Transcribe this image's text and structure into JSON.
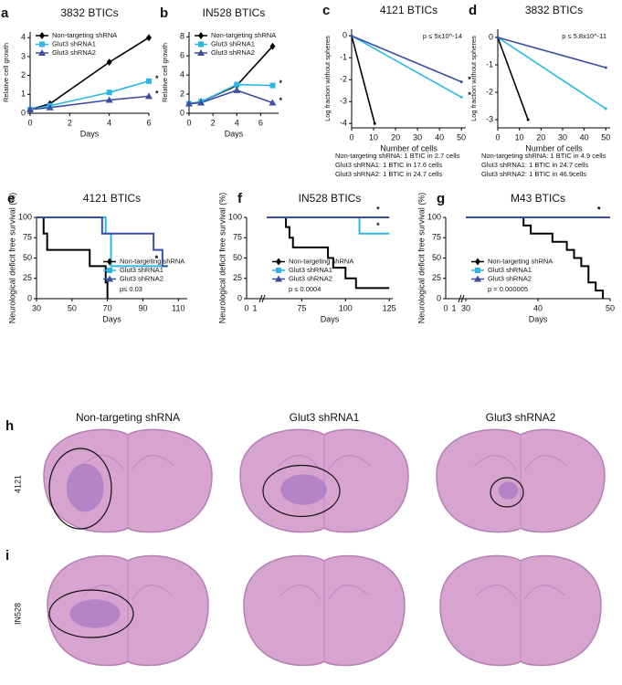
{
  "chart_data": [
    {
      "panel": "a",
      "type": "line",
      "title": "3832 BTICs",
      "xlabel": "Days",
      "ylabel": "Relative cell growth",
      "xlim": [
        0,
        6
      ],
      "ylim": [
        0,
        4.3
      ],
      "xticks": [
        0,
        2,
        4,
        6
      ],
      "yticks": [
        0,
        1,
        2,
        3,
        4
      ],
      "legend": "upper left",
      "series": [
        {
          "name": "Non-targeting shRNA",
          "color": "#000000",
          "marker": "diamond",
          "x": [
            0,
            1,
            4,
            6
          ],
          "values": [
            0.2,
            0.5,
            2.7,
            4.0
          ]
        },
        {
          "name": "Glut3 shRNA1",
          "color": "#2ab7e8",
          "marker": "square",
          "x": [
            0,
            1,
            4,
            6
          ],
          "values": [
            0.2,
            0.4,
            1.1,
            1.7
          ],
          "star": "*"
        },
        {
          "name": "Glut3 shRNA2",
          "color": "#3a4fa0",
          "marker": "triangle",
          "x": [
            0,
            1,
            4,
            6
          ],
          "values": [
            0.2,
            0.3,
            0.7,
            0.9
          ],
          "star": "*"
        }
      ]
    },
    {
      "panel": "b",
      "type": "line",
      "title": "IN528 BTICs",
      "xlabel": "Days",
      "ylabel": "Relative cell growth",
      "xlim": [
        0,
        7.5
      ],
      "ylim": [
        0,
        8.5
      ],
      "xticks": [
        0,
        2,
        4,
        6
      ],
      "yticks": [
        0,
        2,
        4,
        6,
        8
      ],
      "legend": "upper left",
      "series": [
        {
          "name": "Non-targeting shRNA",
          "color": "#000000",
          "marker": "diamond",
          "x": [
            0,
            1,
            4,
            7
          ],
          "values": [
            1,
            1.2,
            2.9,
            7.0
          ]
        },
        {
          "name": "Glut3 shRNA1",
          "color": "#2ab7e8",
          "marker": "square",
          "x": [
            0,
            1,
            4,
            7
          ],
          "values": [
            1,
            1.2,
            3.0,
            2.9
          ],
          "star": "*"
        },
        {
          "name": "Glut3 shRNA2",
          "color": "#3a4fa0",
          "marker": "triangle",
          "x": [
            0,
            1,
            4,
            7
          ],
          "values": [
            1,
            1.1,
            2.4,
            1.1
          ],
          "star": "*"
        }
      ]
    },
    {
      "panel": "c",
      "type": "line",
      "title": "4121 BTICs",
      "xlabel": "Number of cells",
      "ylabel": "Log fraction without spheres",
      "xlim": [
        0,
        52
      ],
      "ylim": [
        -4.2,
        0.3
      ],
      "xticks": [
        0,
        10,
        20,
        30,
        40,
        50
      ],
      "yticks": [
        0,
        -1,
        -2,
        -3,
        -4
      ],
      "annotation": "p ≤ 5x10^-14",
      "series": [
        {
          "name": "Non-targeting shRNA",
          "color": "#000000",
          "x": [
            0,
            10.5
          ],
          "values": [
            0,
            -4
          ]
        },
        {
          "name": "Glut3 shRNA1",
          "color": "#2ab7e8",
          "x": [
            0,
            50
          ],
          "values": [
            0,
            -2.8
          ],
          "star": "*"
        },
        {
          "name": "Glut3 shRNA2",
          "color": "#3a4fa0",
          "x": [
            0,
            50
          ],
          "values": [
            0,
            -2.1
          ],
          "star": "*"
        }
      ],
      "footnotes": [
        {
          "text": "Non-targeting shRNA: 1 BTIC in 2.7 cells",
          "color": "#000000"
        },
        {
          "text": "Glut3 shRNA1:  1 BTIC in 17.6 cells",
          "color": "#2ab7e8"
        },
        {
          "text": "Glut3 shRNA2:  1 BTIC in 24.7 cells",
          "color": "#3a4fa0"
        }
      ]
    },
    {
      "panel": "d",
      "type": "line",
      "title": "3832 BTICs",
      "xlabel": "Number of cells",
      "ylabel": "Log fraction without spheres",
      "xlim": [
        0,
        52
      ],
      "ylim": [
        -3.3,
        0.3
      ],
      "xticks": [
        0,
        10,
        20,
        30,
        40,
        50
      ],
      "yticks": [
        0,
        -1,
        -2,
        -3
      ],
      "annotation": "p ≤ 5.8x10^-11",
      "series": [
        {
          "name": "Non-targeting shRNA",
          "color": "#000000",
          "x": [
            0,
            14
          ],
          "values": [
            0,
            -3
          ]
        },
        {
          "name": "Glut3 shRNA1",
          "color": "#2ab7e8",
          "x": [
            0,
            50
          ],
          "values": [
            0,
            -2.6
          ]
        },
        {
          "name": "Glut3 shRNA2",
          "color": "#3a4fa0",
          "x": [
            0,
            50
          ],
          "values": [
            0,
            -1.1
          ]
        }
      ],
      "footnotes": [
        {
          "text": "Non-targeting shRNA: 1 BTIC in 4.9 cells",
          "color": "#000000"
        },
        {
          "text": "Glut3 shRNA1:  1 BTIC in 24.7 cells",
          "color": "#2ab7e8"
        },
        {
          "text": "Glut3 shRNA2:  1 BTIC in 46.9cells",
          "color": "#3a4fa0"
        }
      ]
    },
    {
      "panel": "e",
      "type": "survival",
      "title": "4121 BTICs",
      "xlabel": "Days",
      "ylabel": "Neurological deficit free survival (%)",
      "xlim": [
        30,
        115
      ],
      "ylim": [
        0,
        100
      ],
      "xticks": [
        30,
        50,
        70,
        90,
        110
      ],
      "yticks": [
        0,
        25,
        50,
        75,
        100
      ],
      "legend": "lower right",
      "annotation": "p≤ 0.03",
      "series": [
        {
          "name": "Non-targeting shRNA",
          "color": "#000000",
          "marker": "diamond",
          "x": [
            30,
            34,
            36,
            60,
            69,
            70
          ],
          "values": [
            100,
            80,
            60,
            40,
            20,
            0
          ]
        },
        {
          "name": "Glut3 shRNA1",
          "color": "#2ab7e8",
          "marker": "square",
          "x": [
            30,
            69,
            72,
            104
          ],
          "values": [
            100,
            80,
            40,
            40
          ],
          "star": "*"
        },
        {
          "name": "Glut3 shRNA2",
          "color": "#3a4fa0",
          "marker": "triangle",
          "x": [
            30,
            67,
            96,
            101,
            104
          ],
          "values": [
            100,
            80,
            60,
            40,
            40
          ],
          "star": "*"
        }
      ]
    },
    {
      "panel": "f",
      "type": "survival",
      "title": "IN528 BTICs",
      "xlabel": "Days",
      "ylabel": "Neurological deficit free survival (%)",
      "xlim": [
        55,
        127
      ],
      "ylim": [
        0,
        100
      ],
      "xticks": [
        75,
        100,
        125
      ],
      "xbreak_labels": [
        "0",
        "1"
      ],
      "yticks": [
        0,
        25,
        50,
        75,
        100
      ],
      "legend": "lower left",
      "annotation": "p ≤ 0.0004",
      "series": [
        {
          "name": "Non-targeting shRNA",
          "color": "#000000",
          "marker": "diamond",
          "x": [
            55,
            66,
            68,
            70,
            90,
            93,
            100,
            106,
            125
          ],
          "values": [
            100,
            88,
            75,
            63,
            50,
            38,
            25,
            13,
            13
          ]
        },
        {
          "name": "Glut3 shRNA1",
          "color": "#2ab7e8",
          "marker": "square",
          "x": [
            55,
            108,
            125
          ],
          "values": [
            100,
            80,
            80
          ],
          "star": "*"
        },
        {
          "name": "Glut3 shRNA2",
          "color": "#3a4fa0",
          "marker": "triangle",
          "x": [
            55,
            125
          ],
          "values": [
            100,
            100
          ],
          "star": "*"
        }
      ]
    },
    {
      "panel": "g",
      "type": "survival",
      "title": "M43 BTICs",
      "xlabel": "Days",
      "ylabel": "Neurological deficit free survival (%)",
      "xlim": [
        30,
        50
      ],
      "ylim": [
        0,
        100
      ],
      "xticks": [
        30,
        40,
        50
      ],
      "xbreak_labels": [
        "0",
        "1"
      ],
      "yticks": [
        0,
        25,
        50,
        75,
        100
      ],
      "legend": "lower left",
      "annotation": "p = 0.000005",
      "series": [
        {
          "name": "Non-targeting shRNA",
          "color": "#000000",
          "marker": "diamond",
          "x": [
            30,
            38,
            39,
            42,
            44,
            45,
            46,
            47,
            48,
            49
          ],
          "values": [
            100,
            90,
            80,
            70,
            60,
            50,
            40,
            20,
            10,
            0
          ]
        },
        {
          "name": "Glut3 shRNA1",
          "color": "#2ab7e8",
          "marker": "square",
          "x": [
            30,
            50
          ],
          "values": [
            100,
            100
          ],
          "star": "*"
        },
        {
          "name": "Glut3 shRNA2",
          "color": "#3a4fa0",
          "marker": "triangle",
          "x": [
            30,
            50
          ],
          "values": [
            100,
            100
          ],
          "star": "*"
        }
      ]
    }
  ],
  "histology": {
    "columns": [
      {
        "text": "Non-targeting shRNA",
        "color": "#222222"
      },
      {
        "text": "Glut3 shRNA1",
        "color": "#2ab7e8"
      },
      {
        "text": "Glut3 shRNA2",
        "color": "#3a4fa0"
      }
    ],
    "rows": [
      {
        "letter": "h",
        "label": "4121"
      },
      {
        "letter": "i",
        "label": "IN528"
      }
    ]
  }
}
